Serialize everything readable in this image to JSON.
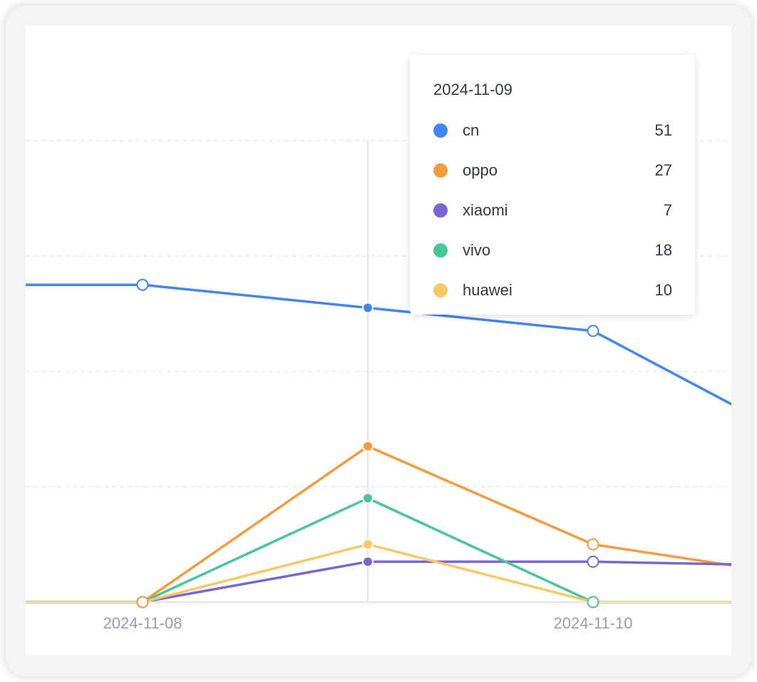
{
  "chart_data": {
    "type": "line",
    "x": [
      "2024-11-08",
      "2024-11-09",
      "2024-11-10"
    ],
    "x_tick_labels": [
      "2024-11-08",
      "2024-11-10"
    ],
    "series": [
      {
        "name": "cn",
        "color": "#4285f4",
        "values": [
          55,
          51,
          47
        ],
        "trailing_value": 33
      },
      {
        "name": "oppo",
        "color": "#f89b3c",
        "values": [
          0,
          27,
          10
        ],
        "trailing_value": 6
      },
      {
        "name": "xiaomi",
        "color": "#7a64d6",
        "values": [
          0,
          7,
          7
        ],
        "trailing_value": 6.5
      },
      {
        "name": "vivo",
        "color": "#47c795",
        "values": [
          0,
          18,
          0
        ],
        "trailing_value": 0
      },
      {
        "name": "huawei",
        "color": "#fbc863",
        "values": [
          0,
          10,
          0
        ],
        "trailing_value": 0
      }
    ],
    "leading_values": [
      55,
      0,
      0,
      0,
      0
    ],
    "ylim": [
      0,
      80
    ],
    "grid": true,
    "highlight_index": 1
  },
  "tooltip": {
    "title": "2024-11-09",
    "rows": [
      {
        "name": "cn",
        "value": "51",
        "color": "#4285f4"
      },
      {
        "name": "oppo",
        "value": "27",
        "color": "#f89b3c"
      },
      {
        "name": "xiaomi",
        "value": "7",
        "color": "#7a64d6"
      },
      {
        "name": "vivo",
        "value": "18",
        "color": "#47c795"
      },
      {
        "name": "huawei",
        "value": "10",
        "color": "#fbc863"
      }
    ]
  }
}
